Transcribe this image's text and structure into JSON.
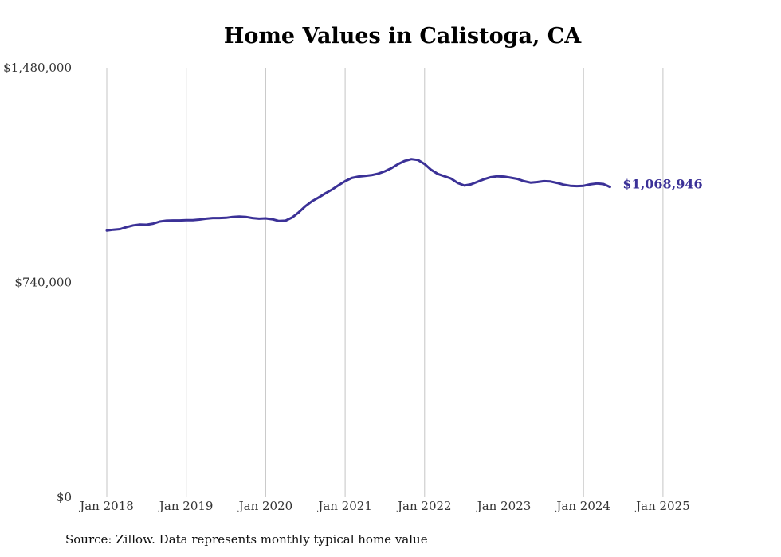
{
  "chart_data": {
    "type": "line",
    "title": "Home Values in Calistoga, CA",
    "xlabel": "",
    "ylabel": "",
    "ylim": [
      0,
      1480000
    ],
    "yticks": [
      "$0",
      "$740,000",
      "$1,480,000"
    ],
    "yticks_values": [
      0,
      740000,
      1480000
    ],
    "xticks": [
      "Jan 2018",
      "Jan 2019",
      "Jan 2020",
      "Jan 2021",
      "Jan 2022",
      "Jan 2023",
      "Jan 2024",
      "Jan 2025"
    ],
    "grid": "vertical",
    "series": [
      {
        "color": "#3b3197",
        "end_label": "$1,068,946",
        "points": [
          [
            "2018-01",
            919000
          ],
          [
            "2018-02",
            922000
          ],
          [
            "2018-03",
            924000
          ],
          [
            "2018-04",
            931000
          ],
          [
            "2018-05",
            937000
          ],
          [
            "2018-06",
            940000
          ],
          [
            "2018-07",
            939000
          ],
          [
            "2018-08",
            943000
          ],
          [
            "2018-09",
            950000
          ],
          [
            "2018-10",
            953000
          ],
          [
            "2018-11",
            954000
          ],
          [
            "2018-12",
            954000
          ],
          [
            "2019-01",
            955000
          ],
          [
            "2019-02",
            955000
          ],
          [
            "2019-03",
            957000
          ],
          [
            "2019-04",
            960000
          ],
          [
            "2019-05",
            962000
          ],
          [
            "2019-06",
            962000
          ],
          [
            "2019-07",
            963000
          ],
          [
            "2019-08",
            966000
          ],
          [
            "2019-09",
            967000
          ],
          [
            "2019-10",
            966000
          ],
          [
            "2019-11",
            962000
          ],
          [
            "2019-12",
            960000
          ],
          [
            "2020-01",
            961000
          ],
          [
            "2020-02",
            958000
          ],
          [
            "2020-03",
            952000
          ],
          [
            "2020-04",
            953000
          ],
          [
            "2020-05",
            964000
          ],
          [
            "2020-06",
            982000
          ],
          [
            "2020-07",
            1003000
          ],
          [
            "2020-08",
            1020000
          ],
          [
            "2020-09",
            1033000
          ],
          [
            "2020-10",
            1047000
          ],
          [
            "2020-11",
            1060000
          ],
          [
            "2020-12",
            1075000
          ],
          [
            "2021-01",
            1089000
          ],
          [
            "2021-02",
            1100000
          ],
          [
            "2021-03",
            1105000
          ],
          [
            "2021-04",
            1107000
          ],
          [
            "2021-05",
            1110000
          ],
          [
            "2021-06",
            1115000
          ],
          [
            "2021-07",
            1123000
          ],
          [
            "2021-08",
            1134000
          ],
          [
            "2021-09",
            1148000
          ],
          [
            "2021-10",
            1159000
          ],
          [
            "2021-11",
            1165000
          ],
          [
            "2021-12",
            1162000
          ],
          [
            "2022-01",
            1148000
          ],
          [
            "2022-02",
            1128000
          ],
          [
            "2022-03",
            1114000
          ],
          [
            "2022-04",
            1106000
          ],
          [
            "2022-05",
            1098000
          ],
          [
            "2022-06",
            1083000
          ],
          [
            "2022-07",
            1074000
          ],
          [
            "2022-08",
            1078000
          ],
          [
            "2022-09",
            1087000
          ],
          [
            "2022-10",
            1096000
          ],
          [
            "2022-11",
            1103000
          ],
          [
            "2022-12",
            1106000
          ],
          [
            "2023-01",
            1105000
          ],
          [
            "2023-02",
            1101000
          ],
          [
            "2023-03",
            1097000
          ],
          [
            "2023-04",
            1089000
          ],
          [
            "2023-05",
            1084000
          ],
          [
            "2023-06",
            1086000
          ],
          [
            "2023-07",
            1089000
          ],
          [
            "2023-08",
            1088000
          ],
          [
            "2023-09",
            1083000
          ],
          [
            "2023-10",
            1077000
          ],
          [
            "2023-11",
            1073000
          ],
          [
            "2023-12",
            1072000
          ],
          [
            "2024-01",
            1073000
          ],
          [
            "2024-02",
            1078000
          ],
          [
            "2024-03",
            1081000
          ],
          [
            "2024-04",
            1079000
          ],
          [
            "2024-05",
            1068946
          ]
        ]
      }
    ],
    "source": "Source: Zillow. Data represents monthly typical home value"
  }
}
